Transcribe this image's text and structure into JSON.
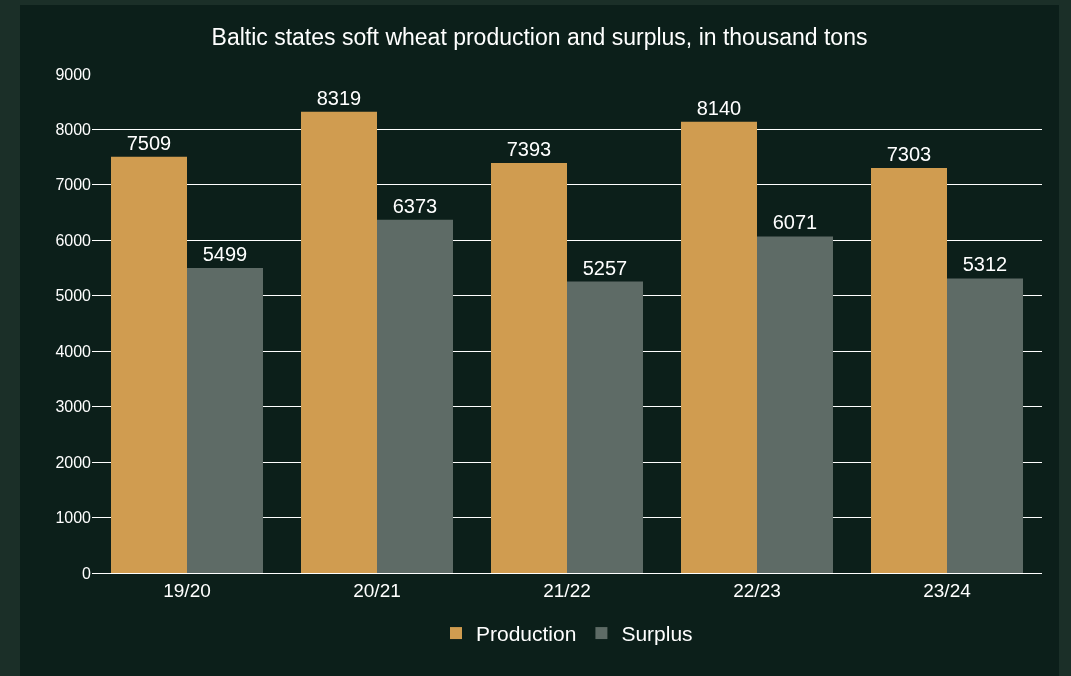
{
  "chart_data": {
    "type": "bar",
    "title": "Baltic states soft wheat production and surplus, in thousand tons",
    "categories": [
      "19/20",
      "20/21",
      "21/22",
      "22/23",
      "23/24"
    ],
    "series": [
      {
        "name": "Production",
        "color": "#d09c50",
        "values": [
          7509,
          8319,
          7393,
          8140,
          7303
        ]
      },
      {
        "name": "Surplus",
        "color": "#5e6b66",
        "values": [
          5499,
          6373,
          5257,
          6071,
          5312
        ]
      }
    ],
    "ylim": [
      0,
      9000
    ],
    "yticks": [
      0,
      1000,
      2000,
      3000,
      4000,
      5000,
      6000,
      7000,
      8000,
      9000
    ],
    "grid": "y",
    "legend": "bottom",
    "data_labels": true
  }
}
